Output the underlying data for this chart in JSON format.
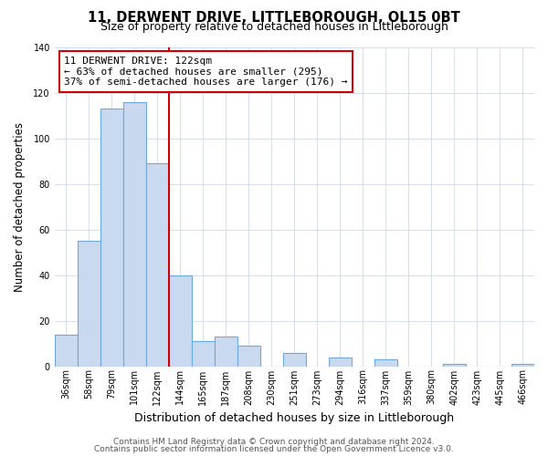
{
  "title": "11, DERWENT DRIVE, LITTLEBOROUGH, OL15 0BT",
  "subtitle": "Size of property relative to detached houses in Littleborough",
  "xlabel": "Distribution of detached houses by size in Littleborough",
  "ylabel": "Number of detached properties",
  "bin_labels": [
    "36sqm",
    "58sqm",
    "79sqm",
    "101sqm",
    "122sqm",
    "144sqm",
    "165sqm",
    "187sqm",
    "208sqm",
    "230sqm",
    "251sqm",
    "273sqm",
    "294sqm",
    "316sqm",
    "337sqm",
    "359sqm",
    "380sqm",
    "402sqm",
    "423sqm",
    "445sqm",
    "466sqm"
  ],
  "bar_heights": [
    14,
    55,
    113,
    116,
    89,
    40,
    11,
    13,
    9,
    0,
    6,
    0,
    4,
    0,
    3,
    0,
    0,
    1,
    0,
    0,
    1
  ],
  "bar_color": "#c9d9f0",
  "bar_edge_color": "#6fa8dc",
  "marker_bin_index": 4,
  "marker_line_color": "#cc0000",
  "annotation_line1": "11 DERWENT DRIVE: 122sqm",
  "annotation_line2": "← 63% of detached houses are smaller (295)",
  "annotation_line3": "37% of semi-detached houses are larger (176) →",
  "annotation_box_color": "#ffffff",
  "annotation_box_edge_color": "#cc0000",
  "ylim": [
    0,
    140
  ],
  "yticks": [
    0,
    20,
    40,
    60,
    80,
    100,
    120,
    140
  ],
  "footer1": "Contains HM Land Registry data © Crown copyright and database right 2024.",
  "footer2": "Contains public sector information licensed under the Open Government Licence v3.0.",
  "background_color": "#ffffff",
  "title_fontsize": 10.5,
  "subtitle_fontsize": 9,
  "xlabel_fontsize": 9,
  "ylabel_fontsize": 8.5,
  "tick_fontsize": 7,
  "annotation_fontsize": 8,
  "footer_fontsize": 6.5,
  "grid_color": "#d0d8e8"
}
